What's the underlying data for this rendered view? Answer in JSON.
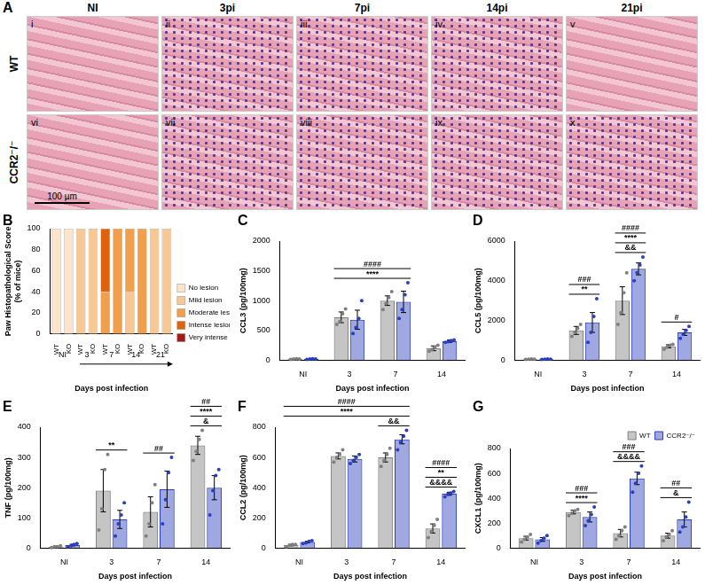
{
  "figure": {
    "title": "A",
    "columns": [
      "NI",
      "3pi",
      "7pi",
      "14pi",
      "21pi"
    ],
    "rows": [
      "WT",
      "CCR2⁻/⁻"
    ],
    "labels": [
      [
        "i",
        "ii",
        "iii",
        "iv",
        "v"
      ],
      [
        "vi",
        "vii",
        "viii",
        "ix",
        "x"
      ]
    ],
    "scale_bar": "100 µm"
  },
  "chart_data": [
    {
      "type": "bar",
      "title": "B",
      "stacked": true,
      "y_label": [
        "Paw Histopathological Score",
        "(% of mice)"
      ],
      "x_label": "Days post infection",
      "categories": [
        "WT",
        "KO",
        "WT",
        "KO",
        "WT",
        "KO",
        "WT",
        "KO",
        "WT",
        "KO"
      ],
      "groups": [
        "NI",
        "3",
        "7",
        "14",
        "21"
      ],
      "series": [
        {
          "name": "No lesion",
          "color": "#fde4cb",
          "values": [
            100,
            100,
            0,
            0,
            0,
            0,
            0,
            0,
            0,
            0
          ]
        },
        {
          "name": "Mild lesion",
          "color": "#f8c894",
          "values": [
            0,
            0,
            100,
            100,
            0,
            0,
            40,
            0,
            100,
            100
          ]
        },
        {
          "name": "Moderate lesion",
          "color": "#f0a04c",
          "values": [
            0,
            0,
            0,
            0,
            40,
            100,
            60,
            100,
            0,
            0
          ]
        },
        {
          "name": "Intense lesion",
          "color": "#e0620d",
          "values": [
            0,
            0,
            0,
            0,
            60,
            0,
            0,
            0,
            0,
            0
          ]
        },
        {
          "name": "Very intense lesion",
          "color": "#a81818",
          "values": [
            0,
            0,
            0,
            0,
            0,
            0,
            0,
            0,
            0,
            0
          ]
        }
      ],
      "ylim": [
        0,
        100
      ],
      "yticks": [
        0,
        20,
        40,
        60,
        80,
        100
      ],
      "grid": false,
      "legend": "right"
    },
    {
      "type": "bar",
      "title": "C",
      "y_label": "CCL3 (pg/100mg)",
      "x_label": "Days post infection",
      "categories": [
        "NI",
        "3",
        "7",
        "14"
      ],
      "series": [
        {
          "name": "WT",
          "color": "#7f7f7f",
          "values": [
            20,
            720,
            1000,
            200
          ],
          "errors": [
            5,
            90,
            80,
            40
          ],
          "points": [
            [
              15,
              20,
              25,
              20
            ],
            [
              600,
              650,
              780,
              860
            ],
            [
              850,
              950,
              1050,
              1150
            ],
            [
              150,
              180,
              220,
              250
            ]
          ]
        },
        {
          "name": "CCR2⁻/⁻",
          "color": "#2a3fbd",
          "values": [
            20,
            680,
            980,
            320
          ],
          "errors": [
            5,
            160,
            180,
            20
          ],
          "points": [
            [
              15,
              20,
              25,
              20
            ],
            [
              450,
              550,
              700,
              1000
            ],
            [
              700,
              850,
              1100,
              1300
            ],
            [
              300,
              310,
              330,
              340
            ]
          ]
        }
      ],
      "ylim": [
        0,
        2000
      ],
      "yticks": [
        0,
        500,
        1000,
        1500,
        2000
      ],
      "grid": false,
      "annotations": [
        {
          "text": "****",
          "over": [
            "3",
            "7"
          ]
        },
        {
          "text": "####",
          "over": [
            "3",
            "7"
          ]
        }
      ]
    },
    {
      "type": "bar",
      "title": "D",
      "y_label": "CCL5 (pg/100mg)",
      "x_label": "Days post infection",
      "categories": [
        "NI",
        "3",
        "7",
        "14"
      ],
      "series": [
        {
          "name": "WT",
          "color": "#7f7f7f",
          "values": [
            50,
            1500,
            3000,
            700
          ],
          "errors": [
            10,
            200,
            700,
            80
          ],
          "points": [
            [
              40,
              50,
              60,
              50
            ],
            [
              1200,
              1400,
              1600,
              1800
            ],
            [
              1800,
              2400,
              3400,
              4400
            ],
            [
              550,
              650,
              750,
              800
            ]
          ]
        },
        {
          "name": "CCR2⁻/⁻",
          "color": "#2a3fbd",
          "values": [
            50,
            1900,
            4600,
            1400
          ],
          "errors": [
            10,
            500,
            300,
            150
          ],
          "points": [
            [
              40,
              50,
              60,
              50
            ],
            [
              900,
              1400,
              2200,
              3100
            ],
            [
              4000,
              4400,
              4800,
              5200
            ],
            [
              1100,
              1300,
              1500,
              1700
            ]
          ]
        }
      ],
      "ylim": [
        0,
        6000
      ],
      "yticks": [
        0,
        2000,
        4000,
        6000
      ],
      "grid": false,
      "annotations": [
        {
          "text": "**",
          "over": [
            "3"
          ]
        },
        {
          "text": "###",
          "over": [
            "3"
          ]
        },
        {
          "text": "&&",
          "over": [
            "7"
          ]
        },
        {
          "text": "****",
          "over": [
            "7"
          ]
        },
        {
          "text": "####",
          "over": [
            "7"
          ]
        },
        {
          "text": "#",
          "over": [
            "14"
          ]
        }
      ]
    },
    {
      "type": "bar",
      "title": "E",
      "y_label": "TNF (pg/100mg)",
      "x_label": "Days post infection",
      "categories": [
        "NI",
        "3",
        "7",
        "14"
      ],
      "series": [
        {
          "name": "WT",
          "color": "#7f7f7f",
          "values": [
            5,
            190,
            120,
            340
          ],
          "errors": [
            2,
            70,
            50,
            30
          ],
          "points": [
            [
              2,
              5,
              5,
              8
            ],
            [
              60,
              130,
              260,
              310
            ],
            [
              40,
              80,
              150,
              210
            ],
            [
              290,
              320,
              360,
              390
            ]
          ]
        },
        {
          "name": "CCR2⁻/⁻",
          "color": "#2a3fbd",
          "values": [
            10,
            95,
            195,
            200
          ],
          "errors": [
            3,
            30,
            60,
            40
          ],
          "points": [
            [
              5,
              8,
              12,
              15
            ],
            [
              40,
              80,
              110,
              150
            ],
            [
              80,
              160,
              250,
              300
            ],
            [
              110,
              190,
              240,
              260
            ]
          ]
        }
      ],
      "ylim": [
        0,
        400
      ],
      "yticks": [
        0,
        100,
        200,
        300,
        400
      ],
      "grid": false,
      "annotations": [
        {
          "text": "**",
          "over": [
            "3"
          ]
        },
        {
          "text": "##",
          "over": [
            "7"
          ]
        },
        {
          "text": "&",
          "over": [
            "14"
          ]
        },
        {
          "text": "****",
          "over": [
            "14"
          ]
        },
        {
          "text": "##",
          "over": [
            "14"
          ]
        }
      ]
    },
    {
      "type": "bar",
      "title": "F",
      "y_label": "CCL2 (pg/100mg)",
      "x_label": "Days post infection",
      "categories": [
        "NI",
        "3",
        "7",
        "14"
      ],
      "series": [
        {
          "name": "WT",
          "color": "#7f7f7f",
          "values": [
            20,
            610,
            600,
            130
          ],
          "errors": [
            5,
            20,
            30,
            30
          ],
          "points": [
            [
              10,
              20,
              25,
              25
            ],
            [
              570,
              600,
              620,
              650
            ],
            [
              540,
              580,
              620,
              660
            ],
            [
              70,
              110,
              150,
              190
            ]
          ]
        },
        {
          "name": "CCR2⁻/⁻",
          "color": "#2a3fbd",
          "values": [
            40,
            590,
            720,
            360
          ],
          "errors": [
            5,
            20,
            30,
            10
          ],
          "points": [
            [
              30,
              35,
              45,
              50
            ],
            [
              560,
              580,
              600,
              620
            ],
            [
              650,
              700,
              740,
              780
            ],
            [
              340,
              355,
              365,
              375
            ]
          ]
        }
      ],
      "ylim": [
        0,
        800
      ],
      "yticks": [
        0,
        200,
        400,
        600,
        800
      ],
      "grid": false,
      "annotations": [
        {
          "text": "&&",
          "over": [
            "7"
          ]
        },
        {
          "text": "****",
          "over": [
            "NI",
            "7"
          ]
        },
        {
          "text": "####",
          "over": [
            "NI",
            "7"
          ]
        },
        {
          "text": "&&&&",
          "over": [
            "14"
          ]
        },
        {
          "text": "**",
          "over": [
            "14"
          ]
        },
        {
          "text": "####",
          "over": [
            "14"
          ]
        }
      ]
    },
    {
      "type": "bar",
      "title": "G",
      "y_label": "CXCL1 (pg/100mg)",
      "x_label": "Days post infection",
      "categories": [
        "NI",
        "3",
        "7",
        "14"
      ],
      "series": [
        {
          "name": "WT",
          "color": "#7f7f7f",
          "values": [
            80,
            290,
            120,
            100
          ],
          "errors": [
            15,
            15,
            30,
            20
          ],
          "points": [
            [
              50,
              70,
              90,
              110
            ],
            [
              260,
              280,
              300,
              310
            ],
            [
              70,
              100,
              140,
              170
            ],
            [
              60,
              90,
              110,
              140
            ]
          ]
        },
        {
          "name": "CCR2⁻/⁻",
          "color": "#2a3fbd",
          "values": [
            70,
            250,
            560,
            230
          ],
          "errors": [
            15,
            40,
            50,
            60
          ],
          "points": [
            [
              40,
              60,
              80,
              100
            ],
            [
              180,
              220,
              270,
              330
            ],
            [
              450,
              520,
              600,
              660
            ],
            [
              130,
              170,
              250,
              370
            ]
          ]
        }
      ],
      "ylim": [
        0,
        800
      ],
      "yticks": [
        0,
        200,
        400,
        600,
        800
      ],
      "grid": false,
      "legend": "upper right",
      "annotations": [
        {
          "text": "****",
          "over": [
            "3"
          ]
        },
        {
          "text": "###",
          "over": [
            "3"
          ]
        },
        {
          "text": "&&&&",
          "over": [
            "7"
          ]
        },
        {
          "text": "###",
          "over": [
            "7"
          ]
        },
        {
          "text": "&",
          "over": [
            "14"
          ]
        },
        {
          "text": "##",
          "over": [
            "14"
          ]
        }
      ]
    }
  ]
}
